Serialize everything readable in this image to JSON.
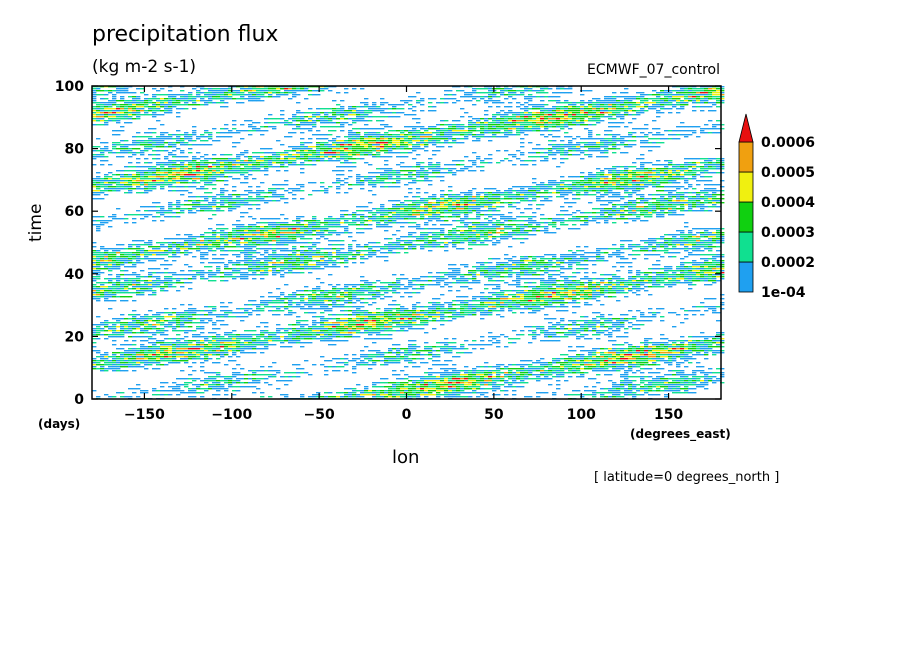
{
  "chart_data": {
    "type": "heatmap",
    "title": "precipitation flux",
    "units": "(kg m-2 s-1)",
    "run_label": "ECMWF_07_control",
    "xlabel": "lon",
    "x_units": "(degrees_east)",
    "ylabel": "time",
    "y_units": "(days)",
    "note": "[ latitude=0 degrees_north ]",
    "xlim": [
      -180,
      180
    ],
    "ylim": [
      0,
      100
    ],
    "x_ticks": [
      "-150",
      "-100",
      "-50",
      "0",
      "50",
      "100",
      "150"
    ],
    "y_ticks": [
      "0",
      "20",
      "40",
      "60",
      "80",
      "100"
    ],
    "colorbar": {
      "labels": [
        "1e-04",
        "0.0002",
        "0.0003",
        "0.0004",
        "0.0005",
        "0.0006"
      ],
      "levels": [
        0.0001,
        0.0002,
        0.0003,
        0.0004,
        0.0005,
        0.0006
      ],
      "colors": [
        "#1fa0f0",
        "#10e090",
        "#10d010",
        "#f0f010",
        "#f0a010",
        "#e81010"
      ]
    },
    "pattern": "eastward-propagating bands of precipitation tilted from lower-left to upper-right; peak values above 0.0006 near (-60, 97), (-125, 71), (95, 95), (60, 26)"
  }
}
